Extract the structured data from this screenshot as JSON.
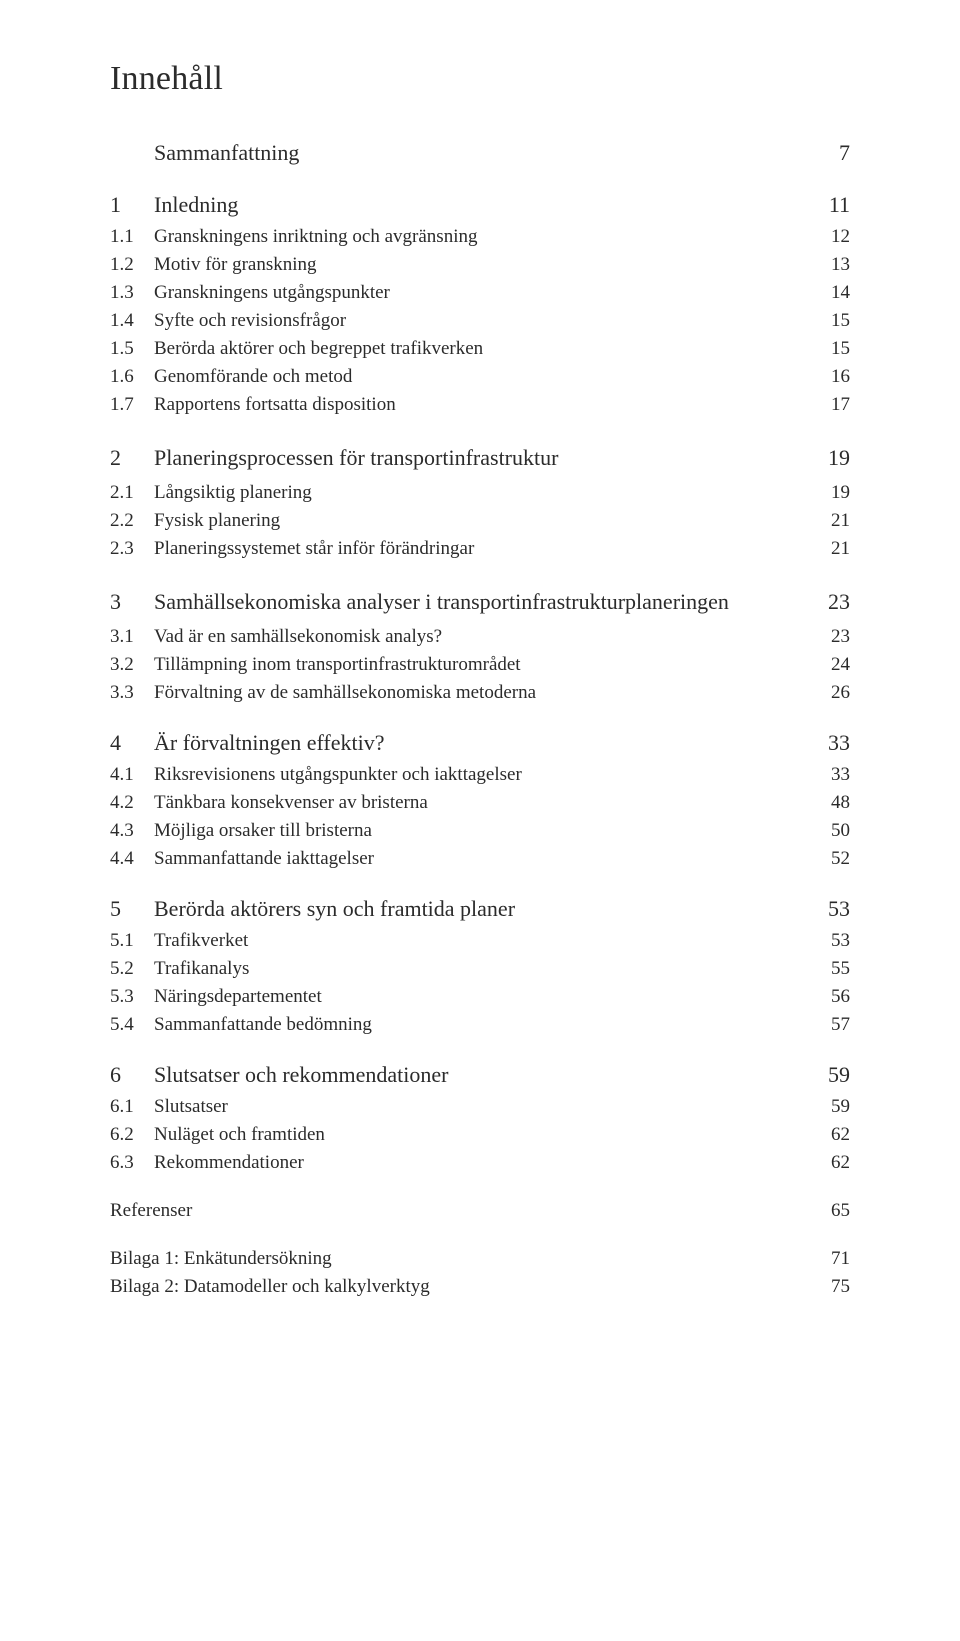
{
  "title": "Innehåll",
  "sections": [
    {
      "num": "",
      "title": "Sammanfattning",
      "page": "7",
      "subs": []
    },
    {
      "num": "1",
      "title": "Inledning",
      "page": "11",
      "subs": [
        {
          "num": "1.1",
          "title": "Granskningens inriktning och avgränsning",
          "page": "12"
        },
        {
          "num": "1.2",
          "title": "Motiv för granskning",
          "page": "13"
        },
        {
          "num": "1.3",
          "title": "Granskningens utgångspunkter",
          "page": "14"
        },
        {
          "num": "1.4",
          "title": "Syfte och revisionsfrågor",
          "page": "15"
        },
        {
          "num": "1.5",
          "title": "Berörda aktörer och begreppet trafikverken",
          "page": "15"
        },
        {
          "num": "1.6",
          "title": "Genomförande och metod",
          "page": "16"
        },
        {
          "num": "1.7",
          "title": "Rapportens fortsatta disposition",
          "page": "17"
        }
      ]
    },
    {
      "num": "2",
      "title": "Planeringsprocessen för transportinfrastruktur",
      "page": "19",
      "subs": [
        {
          "num": "2.1",
          "title": "Långsiktig planering",
          "page": "19"
        },
        {
          "num": "2.2",
          "title": "Fysisk planering",
          "page": "21"
        },
        {
          "num": "2.3",
          "title": "Planeringssystemet står inför förändringar",
          "page": "21"
        }
      ]
    },
    {
      "num": "3",
      "title": "Samhällsekonomiska analyser i transportinfrastrukturplaneringen",
      "page": "23",
      "subs": [
        {
          "num": "3.1",
          "title": "Vad är en samhällsekonomisk analys?",
          "page": "23"
        },
        {
          "num": "3.2",
          "title": "Tillämpning inom transportinfrastrukturområdet",
          "page": "24"
        },
        {
          "num": "3.3",
          "title": "Förvaltning av de samhällsekonomiska metoderna",
          "page": "26"
        }
      ]
    },
    {
      "num": "4",
      "title": "Är förvaltningen effektiv?",
      "page": "33",
      "subs": [
        {
          "num": "4.1",
          "title": "Riksrevisionens utgångspunkter och iakttagelser",
          "page": "33"
        },
        {
          "num": "4.2",
          "title": "Tänkbara konsekvenser av bristerna",
          "page": "48"
        },
        {
          "num": "4.3",
          "title": "Möjliga orsaker till bristerna",
          "page": "50"
        },
        {
          "num": "4.4",
          "title": "Sammanfattande iakttagelser",
          "page": "52"
        }
      ]
    },
    {
      "num": "5",
      "title": "Berörda aktörers syn och framtida planer",
      "page": "53",
      "subs": [
        {
          "num": "5.1",
          "title": "Trafikverket",
          "page": "53"
        },
        {
          "num": "5.2",
          "title": "Trafikanalys",
          "page": "55"
        },
        {
          "num": "5.3",
          "title": "Näringsdepartementet",
          "page": "56"
        },
        {
          "num": "5.4",
          "title": "Sammanfattande bedömning",
          "page": "57"
        }
      ]
    },
    {
      "num": "6",
      "title": "Slutsatser och rekommendationer",
      "page": "59",
      "subs": [
        {
          "num": "6.1",
          "title": "Slutsatser",
          "page": "59"
        },
        {
          "num": "6.2",
          "title": "Nuläget och framtiden",
          "page": "62"
        },
        {
          "num": "6.3",
          "title": "Rekommendationer",
          "page": "62"
        }
      ]
    }
  ],
  "trailing": [
    {
      "title": "Referenser",
      "page": "65"
    },
    {
      "title": "Bilaga 1: Enkätundersökning",
      "page": "71"
    },
    {
      "title": "Bilaga 2: Datamodeller och kalkylverktyg",
      "page": "75"
    }
  ]
}
